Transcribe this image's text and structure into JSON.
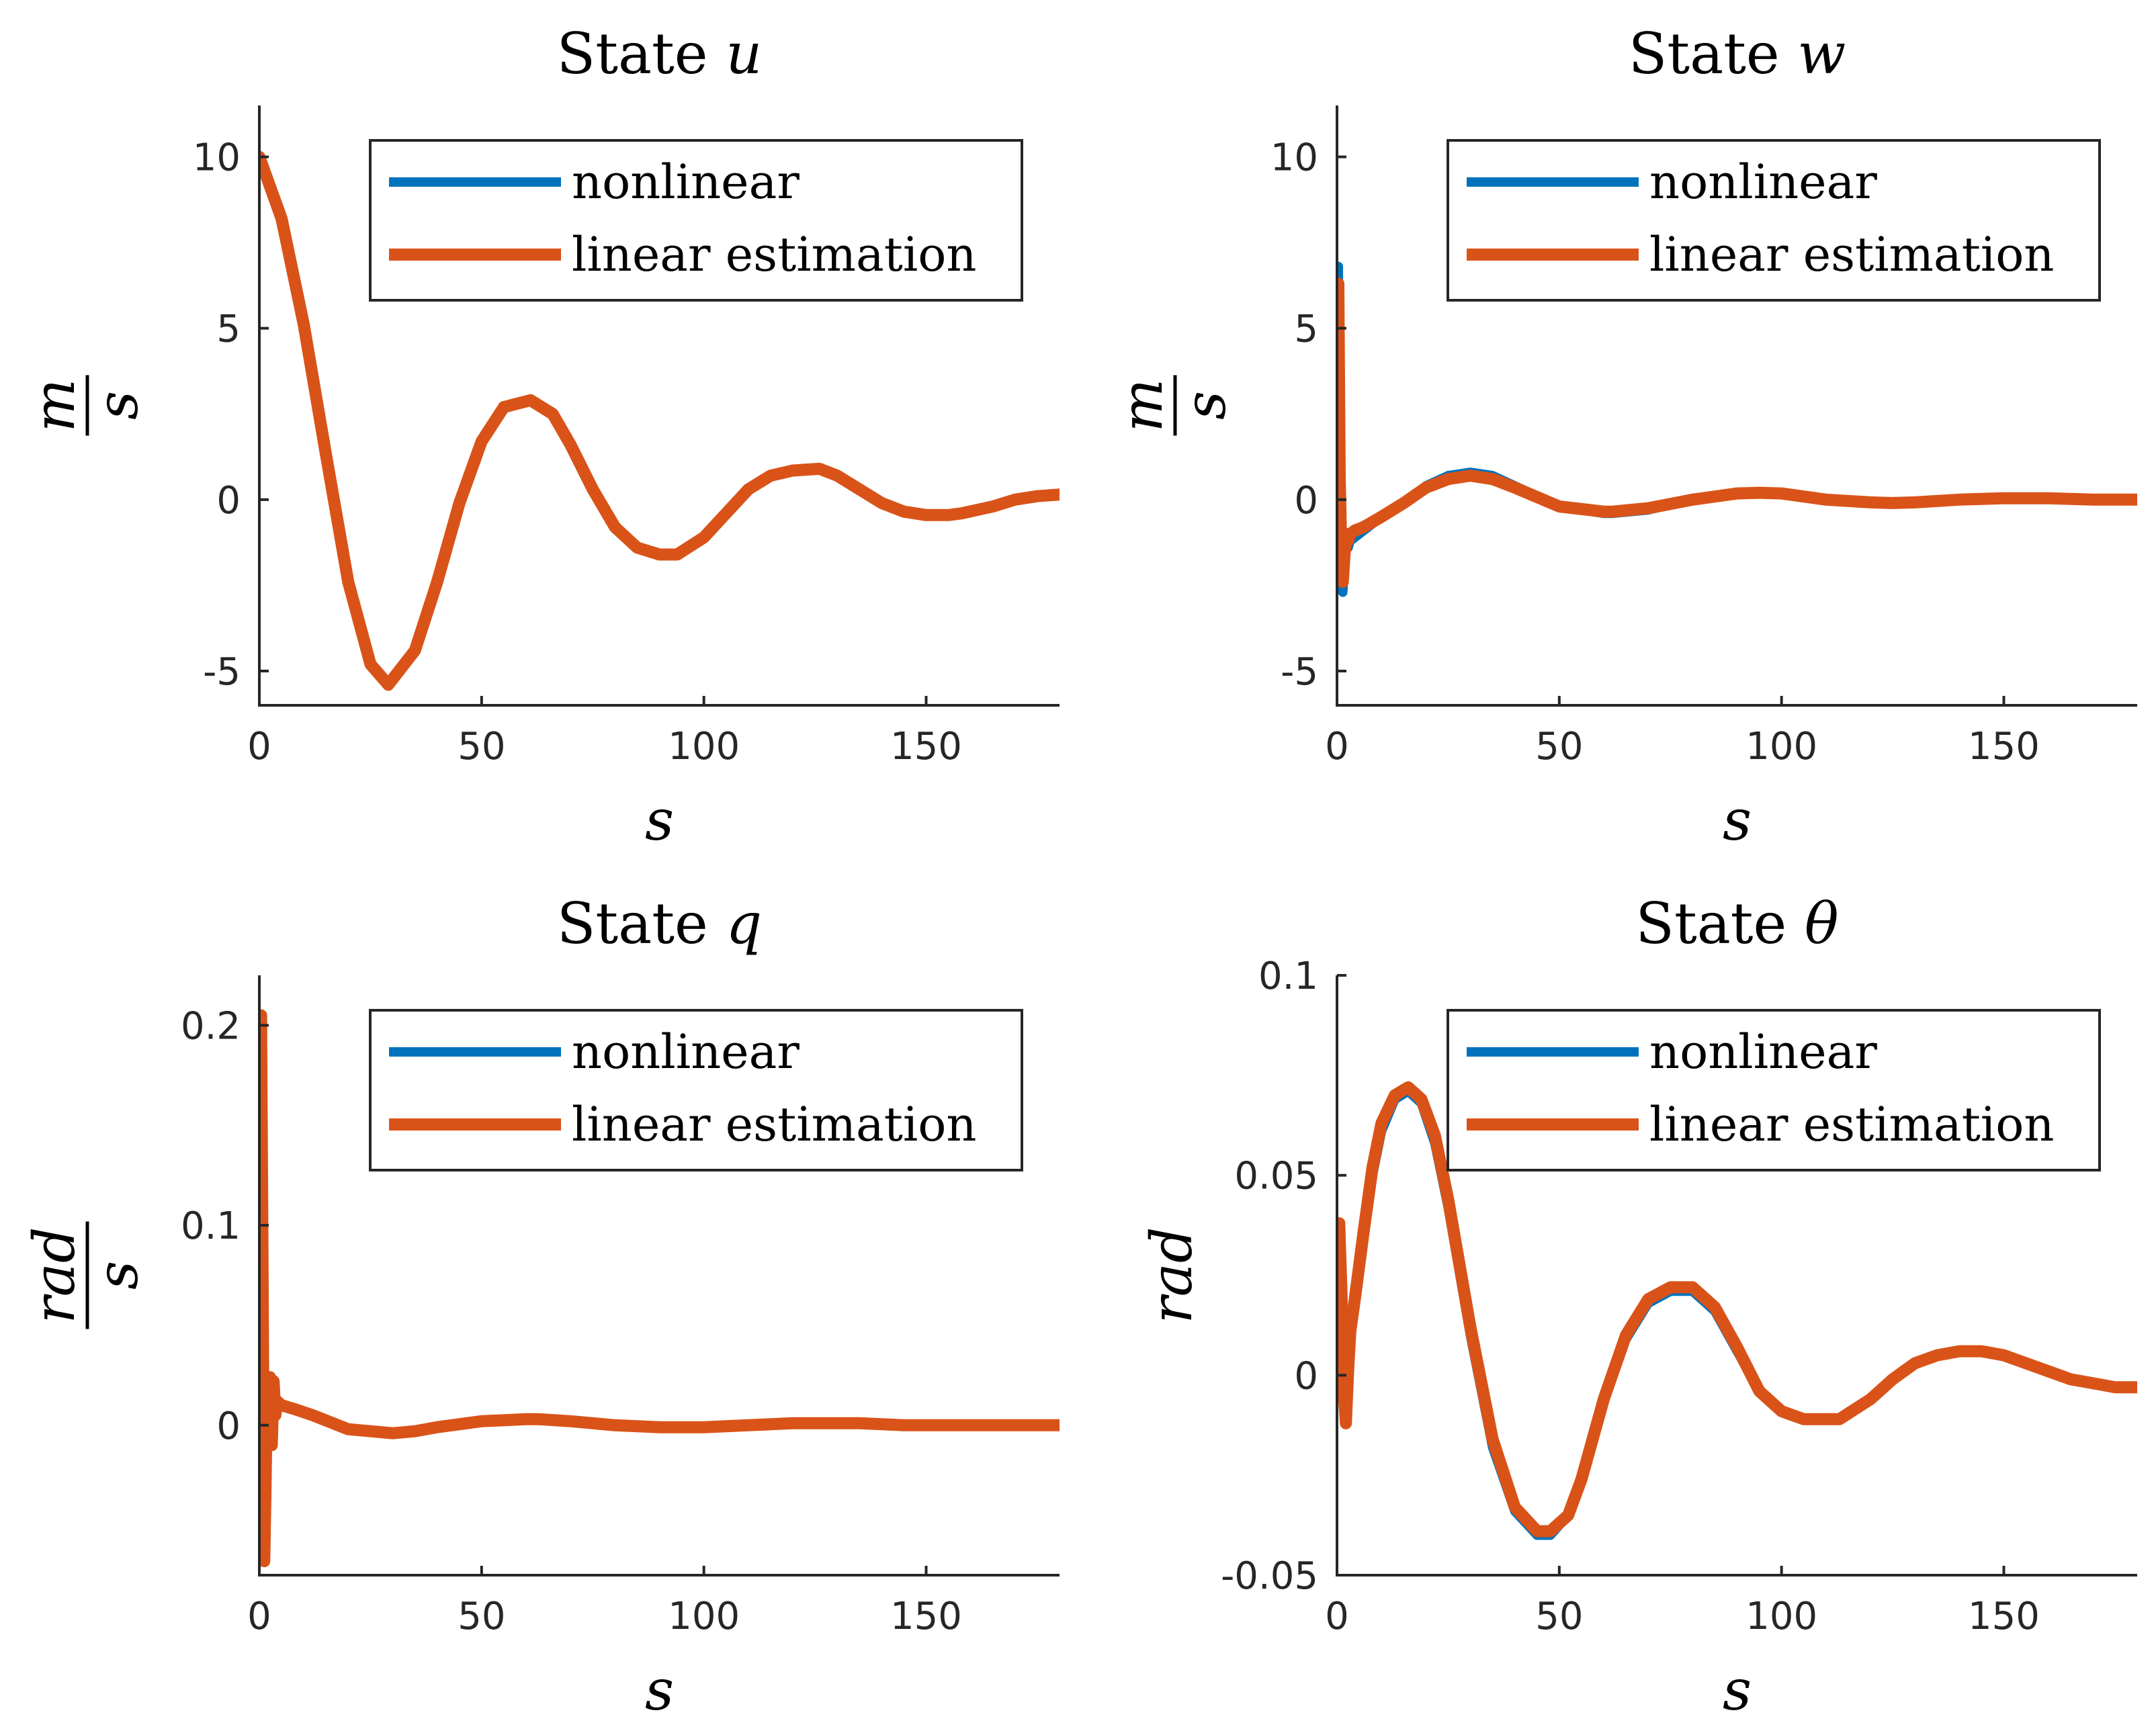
{
  "colors": {
    "nonlinear": "#0072BD",
    "linear": "#D95319"
  },
  "chart_data": [
    {
      "type": "line",
      "title_prefix": "State ",
      "title_symbol": "u",
      "xlabel": "s",
      "ylabel_num": "m",
      "ylabel_den": "s",
      "xlim": [
        0,
        180
      ],
      "ylim": [
        -6,
        11.5
      ],
      "xticks": [
        0,
        50,
        100,
        150
      ],
      "xtick_labels": [
        "0",
        "50",
        "100",
        "150"
      ],
      "yticks": [
        -5,
        0,
        5,
        10
      ],
      "ytick_labels": [
        "-5",
        "0",
        "5",
        "10"
      ],
      "legend_position": "top-right",
      "series": [
        {
          "name": "nonlinear",
          "x": [
            0,
            5,
            10,
            15,
            20,
            25,
            29,
            35,
            40,
            45,
            50,
            55,
            61,
            66,
            70,
            75,
            80,
            85,
            90,
            94,
            100,
            105,
            110,
            115,
            120,
            126,
            130,
            135,
            140,
            145,
            150,
            155,
            158,
            165,
            170,
            175,
            180
          ],
          "y": [
            10,
            8.2,
            5.1,
            1.3,
            -2.4,
            -4.8,
            -5.4,
            -4.4,
            -2.4,
            -0.1,
            1.7,
            2.7,
            2.9,
            2.5,
            1.6,
            0.3,
            -0.8,
            -1.4,
            -1.6,
            -1.6,
            -1.1,
            -0.4,
            0.3,
            0.7,
            0.85,
            0.9,
            0.7,
            0.3,
            -0.1,
            -0.35,
            -0.45,
            -0.45,
            -0.4,
            -0.2,
            0,
            0.1,
            0.15
          ]
        },
        {
          "name": "linear estimation",
          "x": [
            0,
            5,
            10,
            15,
            20,
            25,
            29,
            35,
            40,
            45,
            50,
            55,
            61,
            66,
            70,
            75,
            80,
            85,
            90,
            94,
            100,
            105,
            110,
            115,
            120,
            126,
            130,
            135,
            140,
            145,
            150,
            155,
            158,
            165,
            170,
            175,
            180
          ],
          "y": [
            10,
            8.2,
            5.1,
            1.3,
            -2.4,
            -4.8,
            -5.4,
            -4.4,
            -2.4,
            -0.1,
            1.7,
            2.7,
            2.9,
            2.5,
            1.6,
            0.3,
            -0.8,
            -1.4,
            -1.6,
            -1.6,
            -1.1,
            -0.4,
            0.3,
            0.7,
            0.85,
            0.9,
            0.7,
            0.3,
            -0.1,
            -0.35,
            -0.45,
            -0.45,
            -0.4,
            -0.2,
            0,
            0.1,
            0.15
          ]
        }
      ]
    },
    {
      "type": "line",
      "title_prefix": "State ",
      "title_symbol": "w",
      "xlabel": "s",
      "ylabel_num": "m",
      "ylabel_den": "s",
      "xlim": [
        0,
        180
      ],
      "ylim": [
        -6,
        11.5
      ],
      "xticks": [
        0,
        50,
        100,
        150
      ],
      "xtick_labels": [
        "0",
        "50",
        "100",
        "150"
      ],
      "yticks": [
        -5,
        0,
        5,
        10
      ],
      "ytick_labels": [
        "-5",
        "0",
        "5",
        "10"
      ],
      "legend_position": "top-right",
      "series": [
        {
          "name": "nonlinear",
          "x": [
            0,
            0.3,
            0.6,
            0.9,
            1.3,
            1.7,
            2.1,
            2.5,
            3,
            4,
            6,
            10,
            15,
            20,
            25,
            30,
            35,
            40,
            50,
            60,
            62,
            70,
            80,
            90,
            95,
            100,
            110,
            120,
            125,
            130,
            140,
            150,
            160,
            170,
            180
          ],
          "y": [
            5.2,
            6.8,
            1,
            -1.5,
            -2.7,
            -1.8,
            -1.2,
            -1.4,
            -1.2,
            -1.1,
            -0.9,
            -0.5,
            -0.1,
            0.4,
            0.7,
            0.8,
            0.7,
            0.4,
            -0.2,
            -0.4,
            -0.4,
            -0.3,
            0,
            0.2,
            0.22,
            0.2,
            0,
            -0.1,
            -0.12,
            -0.1,
            0,
            0.05,
            0.05,
            0,
            0
          ]
        },
        {
          "name": "linear estimation",
          "x": [
            0,
            0.3,
            0.6,
            0.9,
            1.3,
            1.7,
            2.1,
            2.5,
            3,
            4,
            6,
            10,
            15,
            20,
            25,
            30,
            35,
            40,
            50,
            60,
            62,
            70,
            80,
            90,
            95,
            100,
            110,
            120,
            125,
            130,
            140,
            150,
            160,
            170,
            180
          ],
          "y": [
            5,
            6.3,
            0.7,
            -1.2,
            -2.4,
            -1.6,
            -1.0,
            -1.2,
            -1.0,
            -0.9,
            -0.8,
            -0.5,
            -0.1,
            0.35,
            0.6,
            0.7,
            0.6,
            0.35,
            -0.2,
            -0.35,
            -0.35,
            -0.25,
            0,
            0.18,
            0.2,
            0.18,
            0,
            -0.08,
            -0.1,
            -0.08,
            0,
            0.04,
            0.04,
            0,
            0
          ]
        }
      ]
    },
    {
      "type": "line",
      "title_prefix": "State ",
      "title_symbol": "q",
      "xlabel": "s",
      "ylabel_num": "rad",
      "ylabel_den": "s",
      "xlim": [
        0,
        180
      ],
      "ylim": [
        -0.075,
        0.225
      ],
      "xticks": [
        0,
        50,
        100,
        150
      ],
      "xtick_labels": [
        "0",
        "50",
        "100",
        "150"
      ],
      "yticks": [
        0,
        0.1,
        0.2
      ],
      "ytick_labels": [
        "0",
        "0.1",
        "0.2"
      ],
      "legend_position": "top-right",
      "series": [
        {
          "name": "nonlinear",
          "x": [
            0,
            0.4,
            0.8,
            1.1,
            1.4,
            1.7,
            2,
            2.4,
            2.8,
            3.2,
            3.6,
            4,
            5,
            8,
            12,
            20,
            25,
            30,
            35,
            40,
            50,
            60,
            63,
            70,
            80,
            90,
            95,
            100,
            110,
            120,
            127,
            135,
            145,
            155,
            165,
            180
          ],
          "y": [
            0,
            0.205,
            0.05,
            -0.068,
            -0.03,
            0.02,
            -0.005,
            0.024,
            -0.01,
            0.022,
            0.005,
            0.012,
            0.01,
            0.008,
            0.005,
            -0.002,
            -0.003,
            -0.004,
            -0.003,
            -0.001,
            0.002,
            0.003,
            0.003,
            0.002,
            0,
            -0.001,
            -0.001,
            -0.001,
            0,
            0.001,
            0.001,
            0.001,
            0,
            0,
            0,
            0
          ]
        },
        {
          "name": "linear estimation",
          "x": [
            0,
            0.4,
            0.8,
            1.1,
            1.4,
            1.7,
            2,
            2.4,
            2.8,
            3.2,
            3.6,
            4,
            5,
            8,
            12,
            20,
            25,
            30,
            35,
            40,
            50,
            60,
            63,
            70,
            80,
            90,
            95,
            100,
            110,
            120,
            127,
            135,
            145,
            155,
            165,
            180
          ],
          "y": [
            0,
            0.205,
            0.05,
            -0.068,
            -0.03,
            0.02,
            -0.005,
            0.024,
            -0.01,
            0.022,
            0.005,
            0.012,
            0.01,
            0.008,
            0.005,
            -0.002,
            -0.003,
            -0.004,
            -0.003,
            -0.001,
            0.002,
            0.003,
            0.003,
            0.002,
            0,
            -0.001,
            -0.001,
            -0.001,
            0,
            0.001,
            0.001,
            0.001,
            0,
            0,
            0,
            0
          ]
        }
      ]
    },
    {
      "type": "line",
      "title_prefix": "State ",
      "title_symbol": "θ",
      "xlabel": "s",
      "ylabel_num": "rad",
      "ylabel_den": "",
      "xlim": [
        0,
        180
      ],
      "ylim": [
        -0.05,
        0.1
      ],
      "xticks": [
        0,
        50,
        100,
        150
      ],
      "xtick_labels": [
        "0",
        "50",
        "100",
        "150"
      ],
      "yticks": [
        -0.05,
        0,
        0.05,
        0.1
      ],
      "ytick_labels": [
        "-0.05",
        "0",
        "0.05",
        "0.1"
      ],
      "legend_position": "top-right",
      "series": [
        {
          "name": "nonlinear",
          "x": [
            0,
            0.5,
            1,
            1.5,
            2,
            2.5,
            3,
            4,
            6,
            8,
            10,
            13,
            16,
            19,
            22,
            25,
            30,
            35,
            40,
            45,
            48,
            52,
            55,
            60,
            65,
            70,
            75,
            80,
            85,
            90,
            95,
            100,
            105,
            110,
            113,
            120,
            125,
            130,
            135,
            140,
            145,
            150,
            155,
            160,
            165,
            170,
            175,
            180
          ],
          "y": [
            0,
            0.037,
            0.02,
            -0.005,
            -0.011,
            0.002,
            0.01,
            0.018,
            0.035,
            0.05,
            0.061,
            0.069,
            0.071,
            0.068,
            0.058,
            0.042,
            0.01,
            -0.018,
            -0.034,
            -0.04,
            -0.04,
            -0.035,
            -0.026,
            -0.006,
            0.009,
            0.018,
            0.021,
            0.021,
            0.016,
            0.006,
            -0.004,
            -0.009,
            -0.011,
            -0.011,
            -0.011,
            -0.006,
            -0.001,
            0.003,
            0.005,
            0.006,
            0.006,
            0.005,
            0.003,
            0.001,
            -0.001,
            -0.002,
            -0.003,
            -0.003
          ]
        },
        {
          "name": "linear estimation",
          "x": [
            0,
            0.5,
            1,
            1.5,
            2,
            2.5,
            3,
            4,
            6,
            8,
            10,
            13,
            16,
            19,
            22,
            25,
            30,
            35,
            40,
            45,
            48,
            52,
            55,
            60,
            65,
            70,
            75,
            80,
            85,
            90,
            95,
            100,
            105,
            110,
            113,
            120,
            125,
            130,
            135,
            140,
            145,
            150,
            155,
            160,
            165,
            170,
            175,
            180
          ],
          "y": [
            0,
            0.038,
            0.021,
            -0.004,
            -0.012,
            0.001,
            0.011,
            0.019,
            0.036,
            0.052,
            0.063,
            0.07,
            0.072,
            0.069,
            0.06,
            0.044,
            0.012,
            -0.016,
            -0.033,
            -0.039,
            -0.039,
            -0.035,
            -0.026,
            -0.006,
            0.01,
            0.019,
            0.022,
            0.022,
            0.017,
            0.007,
            -0.004,
            -0.009,
            -0.011,
            -0.011,
            -0.011,
            -0.006,
            -0.001,
            0.003,
            0.005,
            0.006,
            0.006,
            0.005,
            0.003,
            0.001,
            -0.001,
            -0.002,
            -0.003,
            -0.003
          ]
        }
      ]
    }
  ]
}
